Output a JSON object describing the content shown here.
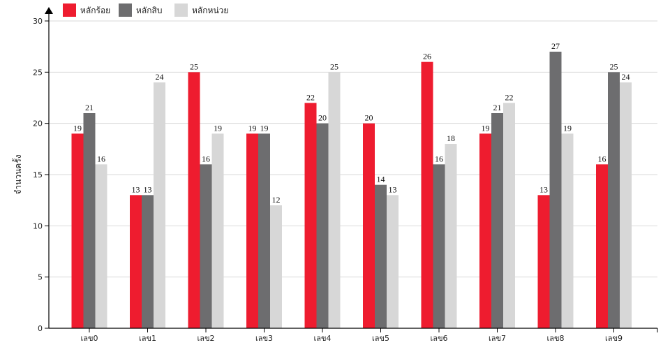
{
  "chart_data": {
    "type": "bar",
    "title": "",
    "xlabel": "",
    "ylabel": "จำนวนครั้ง",
    "ylim": [
      0,
      30
    ],
    "yticks": [
      0,
      5,
      10,
      15,
      20,
      25,
      30
    ],
    "grid": true,
    "legend_position": "top-left",
    "categories": [
      "เลข0",
      "เลข1",
      "เลข2",
      "เลข3",
      "เลข4",
      "เลข5",
      "เลข6",
      "เลข7",
      "เลข8",
      "เลข9"
    ],
    "series": [
      {
        "name": "หลักร้อย",
        "color": "#ee1c2f",
        "values": [
          19,
          13,
          25,
          19,
          22,
          20,
          26,
          19,
          13,
          16
        ]
      },
      {
        "name": "หลักสิบ",
        "color": "#6d6d6f",
        "values": [
          21,
          13,
          16,
          19,
          20,
          14,
          16,
          21,
          27,
          25
        ]
      },
      {
        "name": "หลักหน่วย",
        "color": "#d7d7d7",
        "values": [
          16,
          24,
          19,
          12,
          25,
          13,
          18,
          22,
          19,
          24
        ]
      }
    ]
  }
}
